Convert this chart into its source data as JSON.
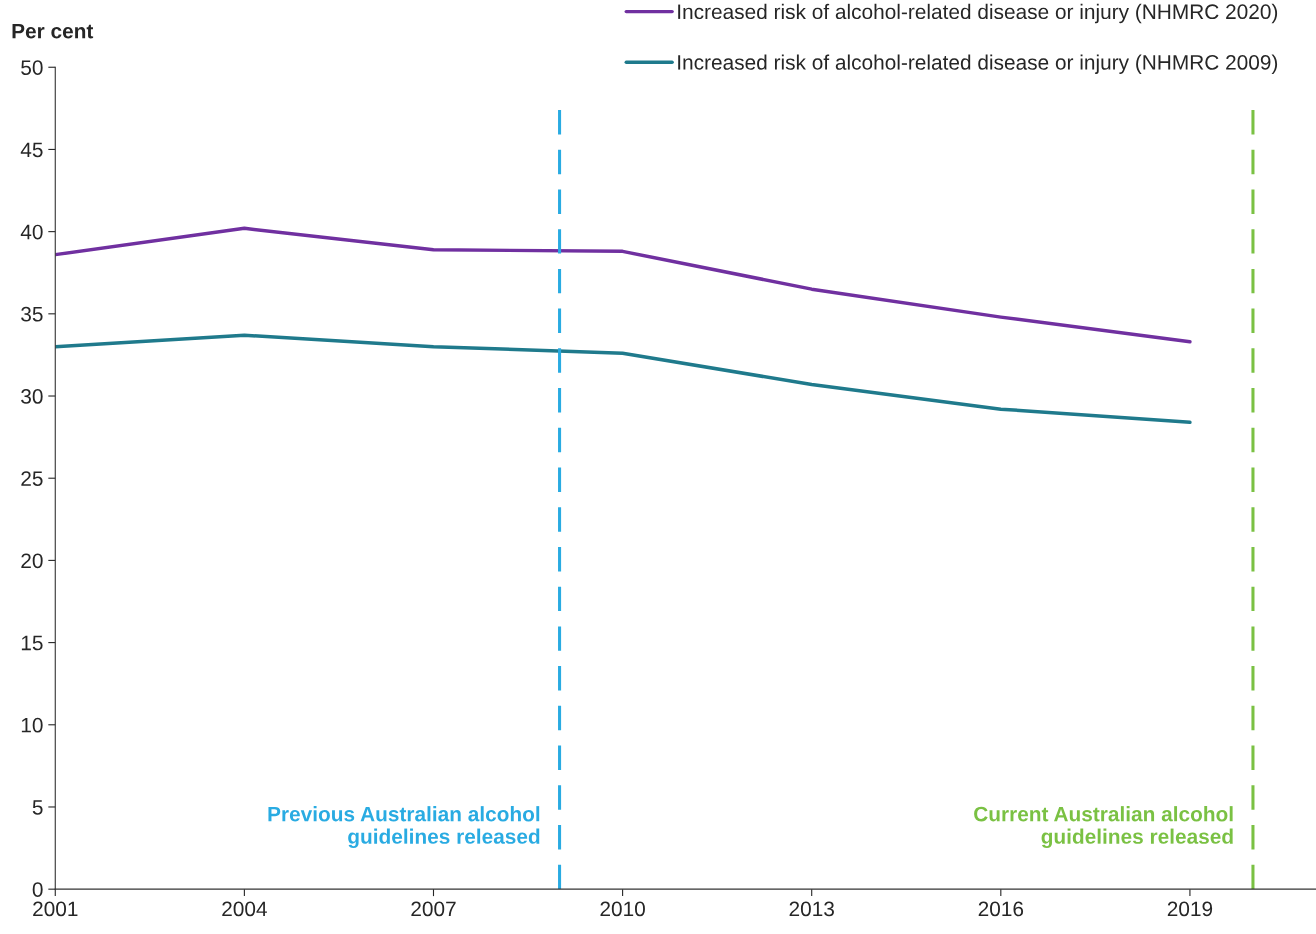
{
  "chart_data": {
    "type": "line",
    "ylabel": "Per cent",
    "x": [
      2001,
      2004,
      2007,
      2010,
      2013,
      2016,
      2019
    ],
    "series": [
      {
        "name": "Increased risk of alcohol-related disease or injury (NHMRC 2020)",
        "color": "#7030a0",
        "values": [
          38.6,
          40.2,
          38.9,
          38.8,
          36.5,
          34.8,
          33.3
        ]
      },
      {
        "name": "Increased risk of alcohol-related disease or injury (NHMRC 2009)",
        "color": "#1f7a8c",
        "values": [
          33.0,
          33.7,
          33.0,
          32.6,
          30.7,
          29.2,
          28.4
        ]
      }
    ],
    "xlim": [
      2001,
      2021
    ],
    "xticks": [
      2001,
      2004,
      2007,
      2010,
      2013,
      2016,
      2019
    ],
    "ylim": [
      0,
      50
    ],
    "yticks": [
      0,
      5,
      10,
      15,
      20,
      25,
      30,
      35,
      40,
      45,
      50
    ],
    "ref_lines": [
      {
        "axis": "x",
        "value": 2009,
        "label": "Previous Australian alcohol\nguidelines released",
        "color": "#29abe2",
        "line_style": "dashed"
      },
      {
        "axis": "x",
        "value": 2020,
        "label": "Current Australian alcohol\nguidelines released",
        "color": "#7ac143",
        "line_style": "dashed"
      }
    ],
    "grid": false,
    "legend": "top right",
    "marker": "none",
    "line_style": "solid"
  }
}
